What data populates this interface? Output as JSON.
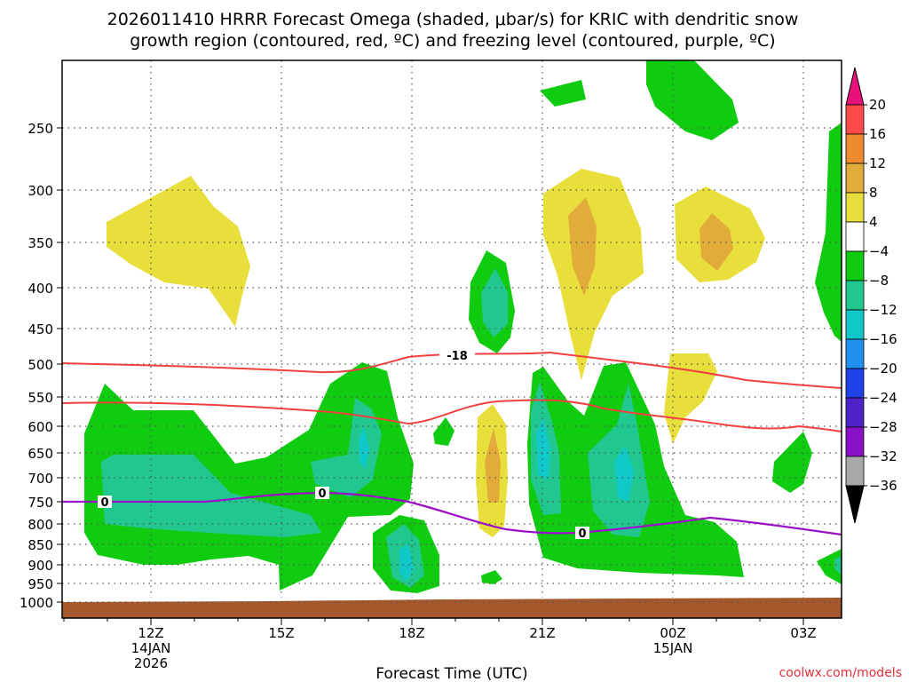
{
  "chart_data": {
    "type": "contour",
    "title_line1": "2026011410 HRRR Forecast Omega (shaded, μbar/s) for KRIC with dendritic snow",
    "title_line2": "growth region (contoured, red, ºC) and freezing level (contoured, purple, ºC)",
    "xlabel": "Forecast Time (UTC)",
    "credit": "coolwx.com/models",
    "y_ticks": [
      "250",
      "300",
      "350",
      "400",
      "450",
      "500",
      "550",
      "600",
      "650",
      "700",
      "750",
      "800",
      "850",
      "900",
      "950",
      "1000"
    ],
    "x_ticks": [
      {
        "label": "12Z",
        "sub1": "14JAN",
        "sub2": "2026"
      },
      {
        "label": "15Z",
        "sub1": "",
        "sub2": ""
      },
      {
        "label": "18Z",
        "sub1": "",
        "sub2": ""
      },
      {
        "label": "21Z",
        "sub1": "",
        "sub2": ""
      },
      {
        "label": "00Z",
        "sub1": "15JAN",
        "sub2": ""
      },
      {
        "label": "03Z",
        "sub1": "",
        "sub2": ""
      }
    ],
    "colorbar": {
      "levels": [
        "20",
        "16",
        "12",
        "8",
        "4",
        "−4",
        "−8",
        "−12",
        "−16",
        "−20",
        "−24",
        "−28",
        "−32",
        "−36"
      ],
      "colors": [
        "#ff4a4a",
        "#f08a2e",
        "#e2ac3a",
        "#e8de3c",
        "#ffffff",
        "#10cc10",
        "#20c890",
        "#10c8c8",
        "#2090ef",
        "#2040e8",
        "#5020c8",
        "#8a10c8",
        "#a8a8a8"
      ],
      "top_color": "#e8107a",
      "bottom_color": "#000000"
    },
    "contour_labels": {
      "dgz_top": "-18",
      "freezing_a": "0",
      "freezing_b": "0",
      "freezing_c": "0"
    },
    "colors": {
      "dgz": "#f04040",
      "freezing": "#9a10c8",
      "ground": "#a4582c",
      "grid": "#555555"
    }
  }
}
